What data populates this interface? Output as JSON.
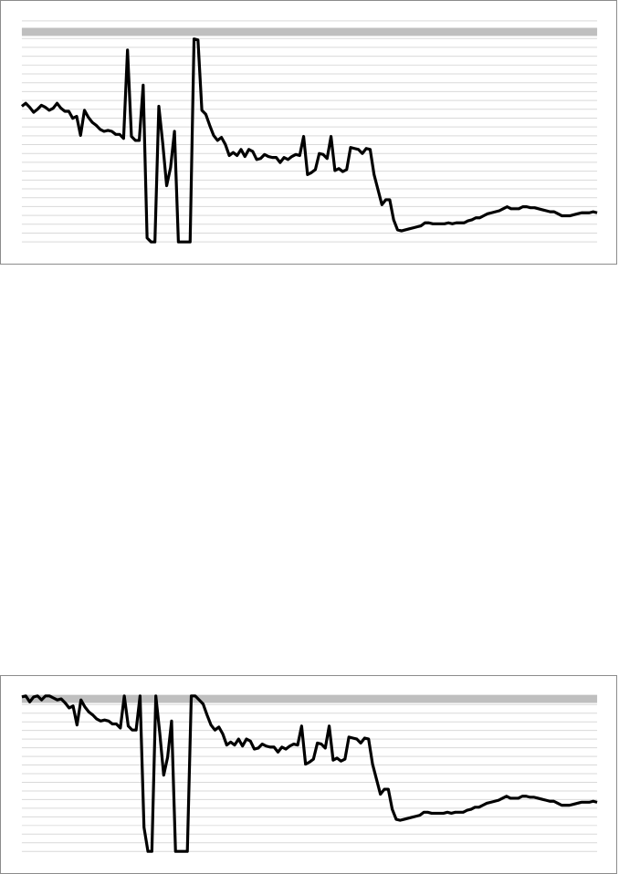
{
  "chart_data": [
    {
      "type": "line",
      "grid": true,
      "ylim": [
        0,
        22
      ],
      "band": {
        "y": 20.9,
        "color": "#bfbfbf"
      },
      "grid_color": "#d9d9d9",
      "line_color": "#000000",
      "values": [
        13.5,
        13.8,
        13.4,
        12.9,
        13.2,
        13.6,
        13.4,
        13.1,
        13.3,
        13.8,
        13.3,
        13.0,
        13.0,
        12.3,
        12.5,
        10.6,
        13.1,
        12.4,
        11.9,
        11.6,
        11.2,
        11.0,
        11.1,
        11.0,
        10.7,
        10.7,
        10.3,
        19.1,
        10.5,
        10.1,
        10.1,
        15.6,
        0.4,
        0,
        0,
        13.5,
        9.8,
        5.6,
        7.4,
        11.0,
        0,
        0,
        0,
        0,
        20.2,
        20.1,
        13.1,
        12.7,
        11.6,
        10.6,
        10.1,
        10.4,
        9.7,
        8.6,
        8.9,
        8.6,
        9.2,
        8.5,
        9.2,
        9.0,
        8.2,
        8.3,
        8.7,
        8.5,
        8.4,
        8.4,
        7.9,
        8.4,
        8.2,
        8.5,
        8.7,
        8.6,
        10.5,
        6.7,
        6.9,
        7.2,
        8.8,
        8.7,
        8.3,
        10.5,
        7.1,
        7.3,
        7.0,
        7.2,
        9.4,
        9.3,
        9.2,
        8.8,
        9.3,
        9.2,
        6.7,
        5.2,
        3.7,
        4.2,
        4.2,
        2.2,
        1.2,
        1.1,
        1.2,
        1.3,
        1.4,
        1.5,
        1.6,
        1.9,
        1.9,
        1.8,
        1.8,
        1.8,
        1.8,
        1.9,
        1.8,
        1.9,
        1.9,
        1.9,
        2.1,
        2.2,
        2.4,
        2.4,
        2.6,
        2.8,
        2.9,
        3.0,
        3.1,
        3.3,
        3.5,
        3.3,
        3.3,
        3.3,
        3.5,
        3.5,
        3.4,
        3.4,
        3.3,
        3.2,
        3.1,
        3.0,
        3.0,
        2.8,
        2.6,
        2.6,
        2.6,
        2.7,
        2.8,
        2.9,
        2.9,
        2.9,
        3.0,
        2.9
      ]
    },
    {
      "type": "line",
      "grid": true,
      "ylim": [
        0,
        15.5
      ],
      "band": {
        "y": 15.2,
        "color": "#bfbfbf"
      },
      "grid_color": "#d9d9d9",
      "line_color": "#000000",
      "values": [
        15.4,
        15.5,
        14.9,
        15.4,
        15.5,
        15.1,
        15.5,
        15.5,
        15.3,
        15.1,
        15.2,
        14.8,
        14.3,
        14.5,
        12.6,
        15.1,
        14.4,
        13.9,
        13.6,
        13.2,
        13.0,
        13.1,
        13.0,
        12.7,
        12.7,
        12.3,
        15.5,
        12.5,
        12.1,
        12.1,
        15.5,
        2.4,
        0,
        0,
        15.5,
        11.8,
        7.6,
        9.4,
        13.0,
        0,
        0,
        0,
        0,
        15.5,
        15.5,
        15.1,
        14.7,
        13.6,
        12.6,
        12.1,
        12.4,
        11.7,
        10.6,
        10.9,
        10.6,
        11.2,
        10.5,
        11.2,
        11.0,
        10.2,
        10.3,
        10.7,
        10.5,
        10.4,
        10.4,
        9.9,
        10.4,
        10.2,
        10.5,
        10.7,
        10.6,
        12.5,
        8.7,
        8.9,
        9.2,
        10.8,
        10.7,
        10.3,
        12.5,
        9.1,
        9.3,
        9.0,
        9.2,
        11.4,
        11.3,
        11.2,
        10.8,
        11.3,
        11.2,
        8.7,
        7.2,
        5.7,
        6.2,
        6.2,
        4.2,
        3.2,
        3.1,
        3.2,
        3.3,
        3.4,
        3.5,
        3.6,
        3.9,
        3.9,
        3.8,
        3.8,
        3.8,
        3.8,
        3.9,
        3.8,
        3.9,
        3.9,
        3.9,
        4.1,
        4.2,
        4.4,
        4.4,
        4.6,
        4.8,
        4.9,
        5.0,
        5.1,
        5.3,
        5.5,
        5.3,
        5.3,
        5.3,
        5.5,
        5.5,
        5.4,
        5.4,
        5.3,
        5.2,
        5.1,
        5.0,
        5.0,
        4.8,
        4.6,
        4.6,
        4.6,
        4.7,
        4.8,
        4.9,
        4.9,
        4.9,
        5.0,
        4.9
      ]
    }
  ]
}
